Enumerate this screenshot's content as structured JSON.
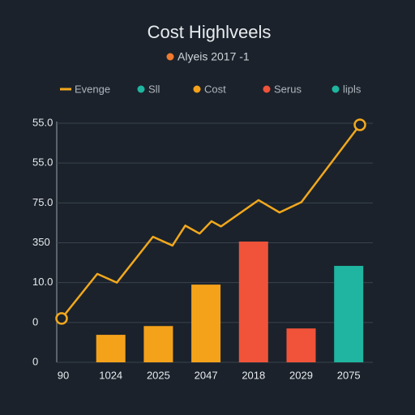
{
  "chart_data": {
    "type": "bar-line",
    "title": "Cost Highlveels",
    "subtitle": "Alyeis 2017 -1",
    "subtitle_color": "#f07a2e",
    "categories": [
      "90",
      "1024",
      "2025",
      "2047",
      "2018",
      "2029",
      "2075"
    ],
    "bars": {
      "values": [
        null,
        0.69,
        0.91,
        1.95,
        3.03,
        0.85,
        2.42
      ],
      "colors": [
        "#f5a21b",
        "#f5a21b",
        "#f5a21b",
        "#f5a21b",
        "#f0533a",
        "#f0533a",
        "#1fb5a0"
      ]
    },
    "line": {
      "name": "Evenge",
      "color": "#f2a81d",
      "x": [
        0,
        0.75,
        1.16,
        1.92,
        2.33,
        2.6,
        2.9,
        3.15,
        3.35,
        4.14,
        4.58,
        5.04,
        6.27
      ],
      "values": [
        1.1,
        2.22,
        2.0,
        3.15,
        2.93,
        3.43,
        3.23,
        3.54,
        3.41,
        4.07,
        3.76,
        4.02,
        5.96
      ]
    },
    "legend": [
      {
        "name": "Sll",
        "color": "#1fb5a0"
      },
      {
        "name": "Cost",
        "color": "#f5a21b"
      },
      {
        "name": "Serus",
        "color": "#f0533a"
      },
      {
        "name": "lipls",
        "color": "#1fb5a0"
      }
    ],
    "ylim": [
      0,
      6
    ],
    "yticks": [
      {
        "value": 0,
        "label": "0"
      },
      {
        "value": 1,
        "label": "0"
      },
      {
        "value": 2,
        "label": "10.0"
      },
      {
        "value": 3,
        "label": "350"
      },
      {
        "value": 4,
        "label": "75.0"
      },
      {
        "value": 5,
        "label": "55.0"
      },
      {
        "value": 6,
        "label": "55.0"
      }
    ],
    "grid": true
  }
}
